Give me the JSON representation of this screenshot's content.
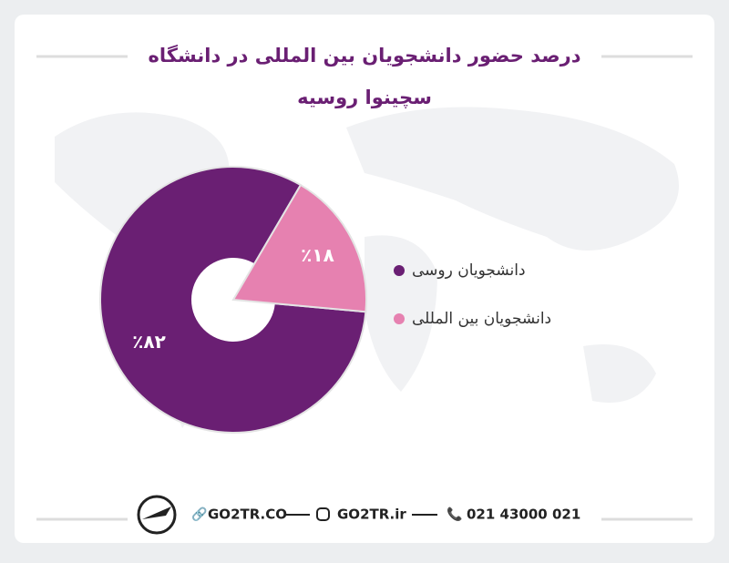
{
  "chart_data": {
    "type": "donut",
    "title": "درصد حضور دانشجویان بین المللی در دانشگاه سچینوا روسیه",
    "categories": [
      "دانشجویان روسی",
      "دانشجویان بین المللی"
    ],
    "values": [
      82,
      18
    ],
    "value_labels": [
      "٪۸۲",
      "٪۱۸"
    ],
    "colors": [
      "#6a1f73",
      "#e681b0"
    ],
    "legend": "right"
  },
  "footer": {
    "website": "GO2TR.CO",
    "instagram": "GO2TR.ir",
    "phone": "021 43000 021"
  }
}
